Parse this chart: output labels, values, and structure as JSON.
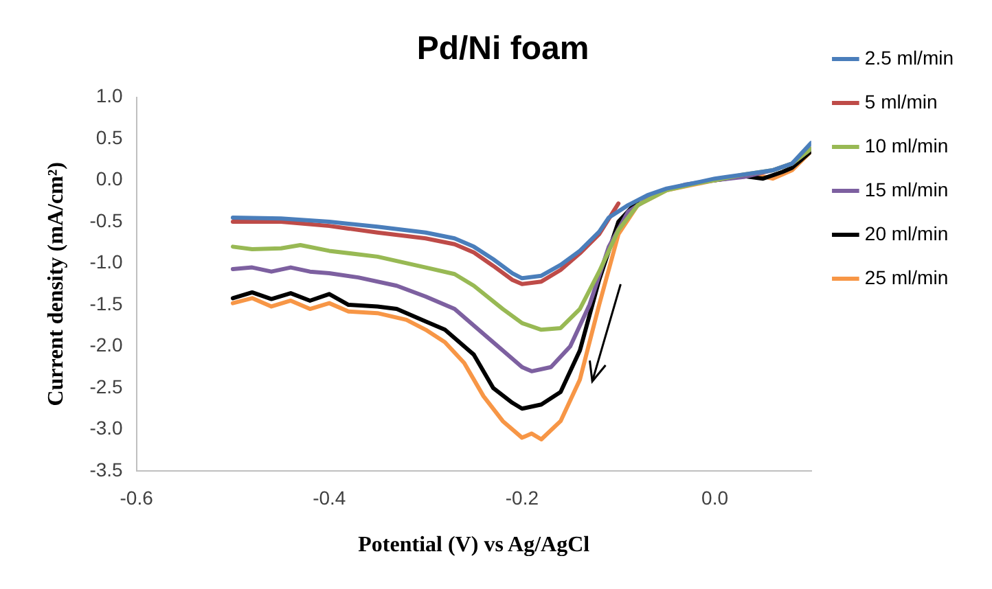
{
  "chart_data": {
    "type": "line",
    "title": "Pd/Ni foam",
    "xlabel": "Potential (V) vs Ag/AgCl",
    "ylabel": "Current density (mA/cm²)",
    "xlim": [
      -0.6,
      0.1
    ],
    "xticks": [
      {
        "value": -0.6,
        "label": "-0.6"
      },
      {
        "value": -0.4,
        "label": "-0.4"
      },
      {
        "value": -0.2,
        "label": "-0.2"
      },
      {
        "value": 0,
        "label": "0.0"
      }
    ],
    "ylim": [
      -3.5,
      1.0
    ],
    "yticks": [
      {
        "value": -3.5,
        "label": "-3.5"
      },
      {
        "value": -3,
        "label": "-3.0"
      },
      {
        "value": -2.5,
        "label": "-2.5"
      },
      {
        "value": -2,
        "label": "-2.0"
      },
      {
        "value": -1.5,
        "label": "-1.5"
      },
      {
        "value": -1,
        "label": "-1.0"
      },
      {
        "value": -0.5,
        "label": "-0.5"
      },
      {
        "value": 0,
        "label": "0.0"
      },
      {
        "value": 0.5,
        "label": "0.5"
      },
      {
        "value": 1,
        "label": "1.0"
      }
    ],
    "grid": false,
    "legend": "right",
    "marker": "none",
    "line_style": "solid",
    "series": [
      {
        "name": "2.5 ml/min",
        "color": "#4a7ebb",
        "x": [
          -0.5,
          -0.45,
          -0.4,
          -0.35,
          -0.3,
          -0.27,
          -0.25,
          -0.23,
          -0.21,
          -0.2,
          -0.18,
          -0.16,
          -0.14,
          -0.12,
          -0.11,
          -0.09,
          -0.07,
          -0.05,
          -0.02,
          0,
          0.03,
          0.06,
          0.08,
          0.1
        ],
        "values": [
          -0.45,
          -0.46,
          -0.5,
          -0.56,
          -0.63,
          -0.7,
          -0.8,
          -0.95,
          -1.12,
          -1.18,
          -1.15,
          -1.02,
          -0.85,
          -0.62,
          -0.45,
          -0.3,
          -0.18,
          -0.1,
          -0.03,
          0.02,
          0.07,
          0.12,
          0.2,
          0.45
        ]
      },
      {
        "name": "5 ml/min",
        "color": "#be4b48",
        "x": [
          -0.5,
          -0.45,
          -0.4,
          -0.35,
          -0.3,
          -0.27,
          -0.25,
          -0.23,
          -0.21,
          -0.2,
          -0.18,
          -0.16,
          -0.14,
          -0.12,
          -0.1
        ],
        "values": [
          -0.5,
          -0.5,
          -0.55,
          -0.63,
          -0.7,
          -0.77,
          -0.87,
          -1.03,
          -1.2,
          -1.25,
          -1.22,
          -1.08,
          -0.88,
          -0.65,
          -0.28
        ]
      },
      {
        "name": "10 ml/min",
        "color": "#98b954",
        "x": [
          -0.5,
          -0.48,
          -0.45,
          -0.43,
          -0.4,
          -0.35,
          -0.3,
          -0.27,
          -0.25,
          -0.22,
          -0.2,
          -0.18,
          -0.16,
          -0.14,
          -0.12,
          -0.1,
          -0.08,
          -0.05,
          -0.02,
          0,
          0.03,
          0.06,
          0.08,
          0.1
        ],
        "values": [
          -0.8,
          -0.83,
          -0.82,
          -0.78,
          -0.85,
          -0.92,
          -1.05,
          -1.13,
          -1.27,
          -1.55,
          -1.72,
          -1.8,
          -1.78,
          -1.55,
          -1.1,
          -0.6,
          -0.3,
          -0.12,
          -0.04,
          0,
          0.07,
          0.12,
          0.2,
          0.38
        ]
      },
      {
        "name": "15 ml/min",
        "color": "#7d60a0",
        "x": [
          -0.5,
          -0.48,
          -0.46,
          -0.44,
          -0.42,
          -0.4,
          -0.37,
          -0.33,
          -0.3,
          -0.27,
          -0.25,
          -0.22,
          -0.2,
          -0.19,
          -0.17,
          -0.15,
          -0.13,
          -0.11,
          -0.09,
          -0.06,
          -0.03,
          0,
          0.03,
          0.06,
          0.08,
          0.1
        ],
        "values": [
          -1.07,
          -1.05,
          -1.1,
          -1.05,
          -1.1,
          -1.12,
          -1.17,
          -1.27,
          -1.4,
          -1.55,
          -1.75,
          -2.05,
          -2.25,
          -2.3,
          -2.25,
          -2.0,
          -1.5,
          -0.8,
          -0.38,
          -0.15,
          -0.05,
          0,
          0.04,
          0.12,
          0.2,
          0.38
        ]
      },
      {
        "name": "20 ml/min",
        "color": "#000000",
        "x": [
          -0.5,
          -0.48,
          -0.46,
          -0.44,
          -0.42,
          -0.4,
          -0.38,
          -0.35,
          -0.33,
          -0.3,
          -0.28,
          -0.25,
          -0.23,
          -0.21,
          -0.2,
          -0.18,
          -0.16,
          -0.14,
          -0.12,
          -0.1,
          -0.08,
          -0.05,
          0,
          0.03,
          0.05,
          0.07,
          0.08,
          0.1
        ],
        "values": [
          -1.42,
          -1.35,
          -1.43,
          -1.36,
          -1.45,
          -1.37,
          -1.5,
          -1.52,
          -1.55,
          -1.7,
          -1.8,
          -2.1,
          -2.5,
          -2.68,
          -2.75,
          -2.7,
          -2.55,
          -2.05,
          -1.2,
          -0.5,
          -0.25,
          null,
          0,
          0.05,
          0.02,
          0.1,
          0.15,
          0.35
        ]
      },
      {
        "name": "25 ml/min",
        "color": "#f79646",
        "x": [
          -0.5,
          -0.48,
          -0.46,
          -0.44,
          -0.42,
          -0.4,
          -0.38,
          -0.35,
          -0.32,
          -0.3,
          -0.28,
          -0.26,
          -0.24,
          -0.22,
          -0.2,
          -0.19,
          -0.18,
          -0.16,
          -0.14,
          -0.12,
          -0.1,
          -0.08,
          -0.05,
          0,
          0.04,
          0.06,
          0.08,
          0.1
        ],
        "values": [
          -1.48,
          -1.42,
          -1.52,
          -1.45,
          -1.55,
          -1.48,
          -1.58,
          -1.6,
          -1.68,
          -1.8,
          -1.95,
          -2.2,
          -2.6,
          -2.9,
          -3.1,
          -3.05,
          -3.12,
          -2.9,
          -2.4,
          -1.5,
          -0.65,
          -0.3,
          -0.12,
          0,
          0.07,
          0.02,
          0.12,
          0.35
        ]
      }
    ]
  }
}
